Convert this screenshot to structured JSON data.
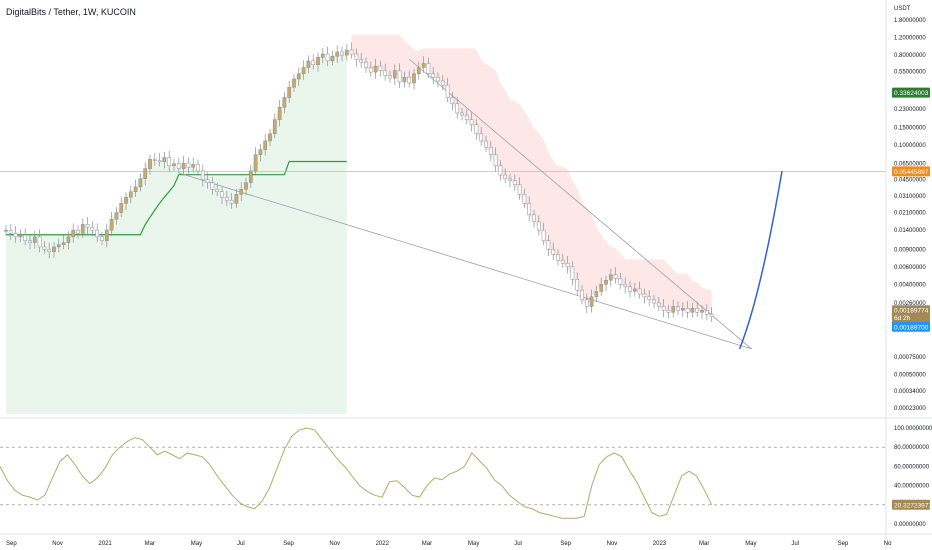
{
  "header": {
    "title": "DigitalBits / Tether, 1W, KUCOIN"
  },
  "colors": {
    "bull": "#c9a96b",
    "bear": "#ffffff",
    "wick": "#8a8f98",
    "trail": "#2e9d3a",
    "green_fill": "#e8f5e9",
    "red_fill": "#fde4e4",
    "projection": "#3563c7",
    "hline": "#f5b26b",
    "osc": "#b5a96a",
    "price_tag": "#2e7d32",
    "hline_tag": "#ef8c1a",
    "cur_tag": "#a38a55",
    "blue_tag": "#2196f3"
  },
  "chart_data": [
    {
      "type": "candlestick",
      "title": "DigitalBits / Tether, 1W, KUCOIN",
      "y_scale": "log",
      "y_unit": "USDT",
      "ylim": [
        0.0002,
        1.8
      ],
      "y_ticks": [
        "1.80000000",
        "1.20000000",
        "0.80000000",
        "0.55000000",
        "0.23000000",
        "0.15000000",
        "0.10000000",
        "0.06500000",
        "0.04500000",
        "0.03100000",
        "0.02100000",
        "0.01400000",
        "0.00900000",
        "0.00600000",
        "0.00400000",
        "0.00260000",
        "0.00170000",
        "0.00075000",
        "0.00050000",
        "0.00034000",
        "0.00023000"
      ],
      "x_ticks": [
        "Sep",
        "Nov",
        "2021",
        "Mar",
        "May",
        "Jul",
        "Sep",
        "Nov",
        "2022",
        "Mar",
        "May",
        "Jul",
        "Sep",
        "Nov",
        "2023",
        "Mar",
        "May",
        "Jul",
        "Sep",
        "No"
      ],
      "price_tags": [
        {
          "label": "0.33624003",
          "kind": "price"
        },
        {
          "label": "0.05445897",
          "kind": "hline"
        },
        {
          "label": "0.00189774",
          "kind": "current"
        },
        {
          "label": "6d 2h",
          "kind": "countdown"
        },
        {
          "label": "0.00189700",
          "kind": "blue"
        }
      ],
      "horizontal_line": 0.05445897,
      "series_close": [
        0.014,
        0.013,
        0.012,
        0.0125,
        0.011,
        0.0105,
        0.012,
        0.0095,
        0.009,
        0.0085,
        0.0095,
        0.01,
        0.0105,
        0.012,
        0.014,
        0.013,
        0.016,
        0.015,
        0.014,
        0.012,
        0.011,
        0.014,
        0.018,
        0.021,
        0.026,
        0.03,
        0.034,
        0.038,
        0.046,
        0.058,
        0.072,
        0.07,
        0.068,
        0.075,
        0.062,
        0.065,
        0.058,
        0.066,
        0.06,
        0.064,
        0.055,
        0.045,
        0.042,
        0.036,
        0.034,
        0.03,
        0.028,
        0.026,
        0.032,
        0.036,
        0.042,
        0.055,
        0.08,
        0.09,
        0.11,
        0.13,
        0.18,
        0.24,
        0.3,
        0.38,
        0.46,
        0.52,
        0.6,
        0.7,
        0.64,
        0.76,
        0.82,
        0.7,
        0.78,
        0.86,
        0.8,
        0.9,
        0.82,
        0.72,
        0.68,
        0.6,
        0.54,
        0.62,
        0.56,
        0.5,
        0.47,
        0.56,
        0.43,
        0.48,
        0.42,
        0.52,
        0.6,
        0.66,
        0.52,
        0.48,
        0.44,
        0.4,
        0.3,
        0.26,
        0.21,
        0.2,
        0.18,
        0.16,
        0.13,
        0.11,
        0.095,
        0.08,
        0.062,
        0.05,
        0.046,
        0.044,
        0.04,
        0.032,
        0.026,
        0.02,
        0.017,
        0.014,
        0.011,
        0.009,
        0.008,
        0.007,
        0.0065,
        0.006,
        0.0045,
        0.0035,
        0.0028,
        0.0024,
        0.003,
        0.0034,
        0.004,
        0.0044,
        0.005,
        0.0046,
        0.004,
        0.0038,
        0.0034,
        0.0036,
        0.0032,
        0.003,
        0.0028,
        0.0026,
        0.0024,
        0.0022,
        0.0021,
        0.0024,
        0.0022,
        0.0023,
        0.0021,
        0.0023,
        0.0021,
        0.0022,
        0.002,
        0.0019
      ],
      "trailing_stop": {
        "segments": 2
      },
      "projection": {
        "from": 0.0009,
        "to": 0.055,
        "direction": "up"
      },
      "oscillator": {
        "ylim": [
          0,
          100
        ],
        "y_ticks": [
          "100.00000000",
          "80.00000000",
          "60.00000000",
          "40.00000000",
          "20.00000000",
          "0.00000000"
        ],
        "levels": [
          80,
          20
        ],
        "current_label": "20.32723977",
        "values": [
          60,
          45,
          35,
          30,
          28,
          25,
          30,
          48,
          65,
          72,
          62,
          50,
          42,
          48,
          58,
          72,
          80,
          86,
          90,
          88,
          80,
          72,
          76,
          72,
          68,
          74,
          72,
          70,
          62,
          50,
          40,
          30,
          22,
          18,
          16,
          24,
          38,
          58,
          78,
          92,
          98,
          100,
          98,
          88,
          78,
          68,
          60,
          50,
          40,
          34,
          30,
          28,
          44,
          45,
          38,
          30,
          28,
          40,
          48,
          46,
          52,
          55,
          60,
          74,
          66,
          58,
          46,
          40,
          30,
          24,
          18,
          16,
          12,
          10,
          8,
          6,
          6,
          6,
          8,
          40,
          62,
          70,
          74,
          70,
          56,
          44,
          28,
          12,
          8,
          10,
          30,
          50,
          55,
          50,
          36,
          20
        ]
      }
    }
  ]
}
